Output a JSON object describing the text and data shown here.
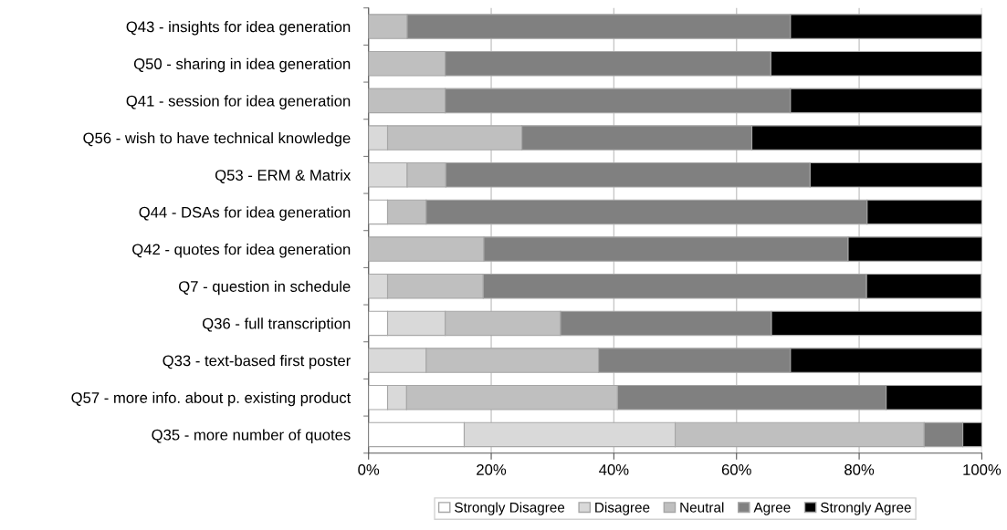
{
  "chart_data": {
    "type": "bar",
    "orientation": "horizontal",
    "stacked": true,
    "categories": [
      "Q43 - insights for idea generation",
      "Q50 - sharing in idea generation",
      "Q41 - session for idea generation",
      "Q56 - wish to have technical knowledge",
      "Q53 - ERM & Matrix",
      "Q44 - DSAs for idea generation",
      "Q42 - quotes for idea generation",
      "Q7 - question in schedule",
      "Q36 - full transcription",
      "Q33 - text-based first poster",
      "Q57 - more info. about p. existing product",
      "Q35 - more number of quotes"
    ],
    "series": [
      {
        "name": "Strongly Disagree",
        "color": "#ffffff",
        "values": [
          0,
          0,
          0,
          0,
          0,
          3.1,
          0,
          0,
          3.1,
          0,
          3.1,
          15.6
        ]
      },
      {
        "name": "Disagree",
        "color": "#d9d9d9",
        "values": [
          0,
          0,
          0,
          3.1,
          6.3,
          0,
          0,
          3.1,
          9.4,
          9.4,
          3.1,
          34.4
        ]
      },
      {
        "name": "Neutral",
        "color": "#bfbfbf",
        "values": [
          6.3,
          12.5,
          12.5,
          21.9,
          6.3,
          6.3,
          18.8,
          15.6,
          18.8,
          28.1,
          34.4,
          40.6
        ]
      },
      {
        "name": "Agree",
        "color": "#808080",
        "values": [
          62.5,
          53.1,
          56.3,
          37.5,
          59.4,
          71.9,
          59.4,
          62.5,
          34.4,
          31.3,
          43.8,
          6.3
        ]
      },
      {
        "name": "Strongly Agree",
        "color": "#000000",
        "values": [
          31.2,
          34.4,
          31.2,
          37.5,
          28.1,
          18.7,
          21.9,
          18.7,
          34.3,
          31.2,
          15.7,
          3.1
        ]
      }
    ],
    "xlim": [
      0,
      100
    ],
    "xticks": [
      {
        "value": 0,
        "label": "0%"
      },
      {
        "value": 20,
        "label": "20%"
      },
      {
        "value": 40,
        "label": "40%"
      },
      {
        "value": 60,
        "label": "60%"
      },
      {
        "value": 80,
        "label": "80%"
      },
      {
        "value": 100,
        "label": "100%"
      }
    ],
    "grid": "x",
    "legend": "bottom"
  }
}
